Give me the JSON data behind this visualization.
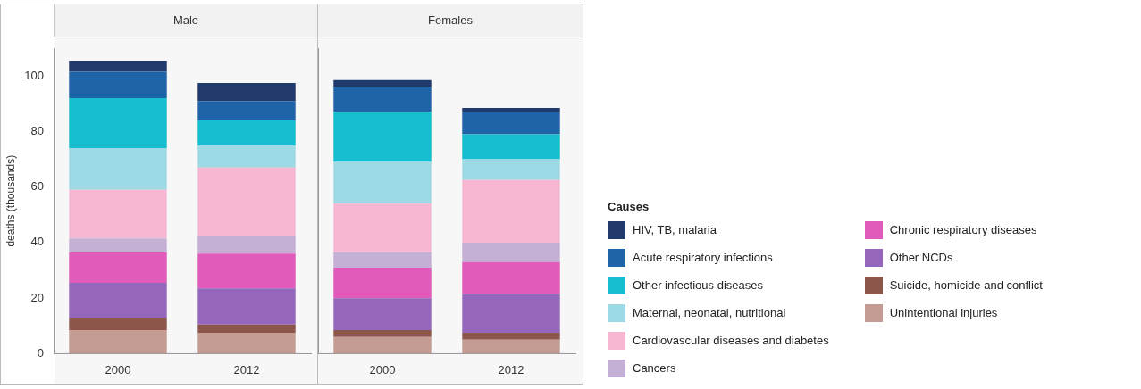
{
  "chart_data": [
    {
      "type": "bar",
      "title": "Male",
      "ylabel": "deaths (thousands)",
      "categories": [
        "2000",
        "2012"
      ],
      "stacked": true,
      "ylim": [
        0,
        110
      ],
      "yticks": [
        0,
        20,
        40,
        60,
        80,
        100
      ],
      "legend": "right",
      "legend_title": "Causes",
      "series": [
        {
          "name": "Unintentional injuries",
          "color": "#c49c94",
          "values": [
            8.5,
            7.5
          ]
        },
        {
          "name": "Suicide, homicide and conflict",
          "color": "#8c564b",
          "values": [
            4.5,
            3
          ]
        },
        {
          "name": "Other NCDs",
          "color": "#9467bd",
          "values": [
            12.5,
            13
          ]
        },
        {
          "name": "Chronic respiratory diseases",
          "color": "#e15bbb",
          "values": [
            11,
            12.5
          ]
        },
        {
          "name": "Cancers",
          "color": "#c5b0d5",
          "values": [
            5,
            6.5
          ]
        },
        {
          "name": "Cardiovascular diseases and diabetes",
          "color": "#f7b6d2",
          "values": [
            17.5,
            24.5
          ]
        },
        {
          "name": "Maternal, neonatal, nutritional",
          "color": "#9edae5",
          "values": [
            15,
            8
          ]
        },
        {
          "name": "Other infectious diseases",
          "color": "#17becf",
          "values": [
            18,
            9
          ]
        },
        {
          "name": "Acute respiratory infections",
          "color": "#1f63a8",
          "values": [
            9.5,
            7
          ]
        },
        {
          "name": "HIV, TB, malaria",
          "color": "#1f3a6b",
          "values": [
            4,
            6.5
          ]
        }
      ]
    },
    {
      "type": "bar",
      "title": "Females",
      "categories": [
        "2000",
        "2012"
      ],
      "stacked": true,
      "ylim": [
        0,
        110
      ],
      "yticks": [
        0,
        20,
        40,
        60,
        80,
        100
      ],
      "tick_labels": "x",
      "series": [
        {
          "color": "#c49c94",
          "values": [
            6,
            5
          ]
        },
        {
          "color": "#8c564b",
          "values": [
            2.5,
            2.5
          ]
        },
        {
          "color": "#9467bd",
          "values": [
            11.5,
            14
          ]
        },
        {
          "color": "#e15bbb",
          "values": [
            11,
            11.5
          ]
        },
        {
          "color": "#c5b0d5",
          "values": [
            5.5,
            7
          ]
        },
        {
          "color": "#f7b6d2",
          "values": [
            17.5,
            22.5
          ]
        },
        {
          "color": "#9edae5",
          "values": [
            15,
            7.5
          ]
        },
        {
          "color": "#17becf",
          "values": [
            18,
            9
          ]
        },
        {
          "color": "#1f63a8",
          "values": [
            9,
            8
          ]
        },
        {
          "color": "#1f3a6b",
          "values": [
            2.5,
            1.5
          ]
        }
      ]
    }
  ]
}
